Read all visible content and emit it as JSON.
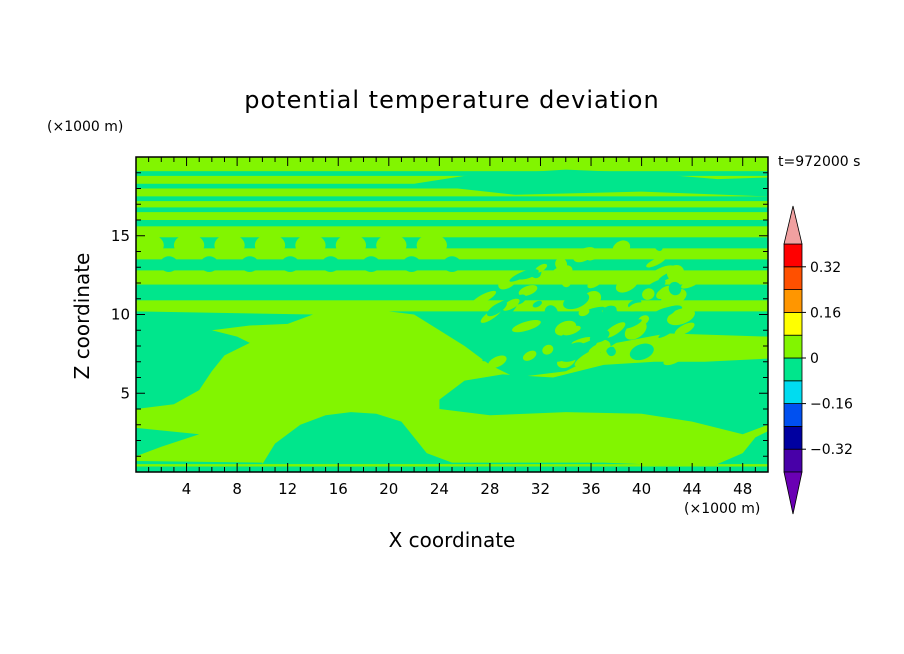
{
  "chart_data": {
    "type": "heatmap",
    "title": "potential temperature deviation",
    "xlabel": "X coordinate",
    "ylabel": "Z coordinate",
    "x_unit": "(×1000 m)",
    "y_unit": "(×1000 m)",
    "time_label": "t=972000 s",
    "xlim": [
      0,
      50
    ],
    "ylim": [
      0,
      20
    ],
    "x_ticks": [
      4,
      8,
      12,
      16,
      20,
      24,
      28,
      32,
      36,
      40,
      44,
      48
    ],
    "y_ticks": [
      5,
      10,
      15
    ],
    "colorbar": {
      "levels": [
        -0.4,
        -0.32,
        -0.24,
        -0.16,
        -0.08,
        0,
        0.08,
        0.16,
        0.24,
        0.32,
        0.4
      ],
      "tick_labels": [
        "0.32",
        "0.16",
        "0",
        "−0.16",
        "−0.32"
      ],
      "tick_values": [
        0.32,
        0.16,
        0,
        -0.16,
        -0.32
      ],
      "colors": [
        "#5a00b4",
        "#1a1ab0",
        "#0000c8",
        "#1464f0",
        "#00d2f0",
        "#00e68c",
        "#82f500",
        "#ffff00",
        "#ff9600",
        "#f03c14",
        "#ff0000"
      ],
      "overflow_high_color": "#f0a0a0",
      "underflow_color": "#6a00b4"
    },
    "field": {
      "dominant_classes": [
        {
          "range": "-0.08 to 0",
          "color": "#00e68c"
        },
        {
          "range": "0 to 0.08",
          "color": "#82f500"
        }
      ],
      "regions": [
        {
          "name": "upper-left lower layer",
          "value_class": "negative",
          "x": [
            0,
            14
          ],
          "y": [
            4.0,
            10.2
          ]
        },
        {
          "name": "bottom dome",
          "value_class": "negative",
          "x": [
            10,
            22
          ],
          "y": [
            0.5,
            3.8
          ]
        },
        {
          "name": "right lower lens",
          "value_class": "negative",
          "x": [
            24,
            50
          ],
          "y": [
            3.8,
            7.5
          ]
        },
        {
          "name": "right middle band",
          "value_class": "negative",
          "x": [
            28,
            50
          ],
          "y": [
            7.5,
            10.2
          ]
        },
        {
          "name": "upper bands",
          "value_class": "alternating",
          "x": [
            0,
            50
          ],
          "y": [
            10.2,
            19.6
          ]
        }
      ]
    }
  }
}
